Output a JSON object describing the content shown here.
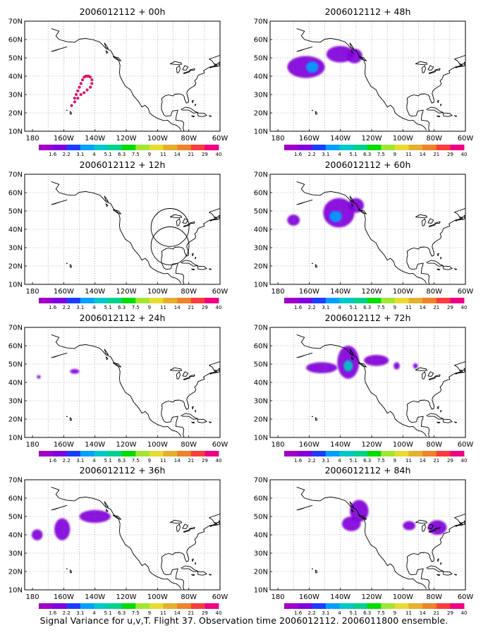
{
  "figure": {
    "caption": "Signal Variance for u,v,T. Flight 37. Observation time 2006012112. 2006011800 ensemble."
  },
  "colorbar": {
    "labels": [
      "1.6",
      "2.2",
      "3.1",
      "4",
      "5.1",
      "6.3",
      "7.5",
      "9",
      "11",
      "14",
      "21",
      "29",
      "40"
    ],
    "colors": [
      "#a000c8",
      "#8200dc",
      "#1e3cff",
      "#00a0ff",
      "#00c8c8",
      "#00d28c",
      "#00dc00",
      "#a0e632",
      "#e6dc32",
      "#e6af2d",
      "#f08228",
      "#fa3c3c",
      "#f00082"
    ]
  },
  "map": {
    "lon_ticks": [
      "180",
      "160W",
      "140W",
      "120W",
      "100W",
      "80W",
      "60W"
    ],
    "lat_ticks": [
      "10N",
      "20N",
      "30N",
      "40N",
      "50N",
      "60N",
      "70N"
    ],
    "lon_range": [
      -185,
      -60
    ],
    "lat_range": [
      10,
      70
    ],
    "grid": true
  },
  "chart_data": [
    {
      "type": "heatmap",
      "title": "2006012112 + 00h",
      "markers": [
        [
          -153,
          28
        ],
        [
          -152,
          30
        ],
        [
          -151,
          32
        ],
        [
          -150,
          34
        ],
        [
          -149,
          36
        ],
        [
          -148,
          38
        ],
        [
          -147,
          39.5
        ],
        [
          -146,
          40
        ],
        [
          -145,
          40
        ],
        [
          -144,
          40
        ],
        [
          -143,
          39.5
        ],
        [
          -142,
          38
        ],
        [
          -142,
          36
        ],
        [
          -143,
          34
        ],
        [
          -145,
          32.5
        ],
        [
          -147,
          31
        ],
        [
          -149,
          30
        ],
        [
          -151,
          28
        ],
        [
          -153,
          26
        ],
        [
          -155,
          24
        ]
      ],
      "blobs": [],
      "circles": []
    },
    {
      "type": "heatmap",
      "title": "2006012112 + 12h",
      "markers": [],
      "blobs": [],
      "circles": [
        [
          -92,
          41,
          9
        ],
        [
          -92,
          31,
          9
        ]
      ]
    },
    {
      "type": "heatmap",
      "title": "2006012112 + 24h",
      "markers": [],
      "blobs": [
        [
          -176,
          43,
          1.2,
          1,
          1.6
        ],
        [
          -153,
          46,
          3,
          1.3,
          1.6
        ]
      ],
      "circles": []
    },
    {
      "type": "heatmap",
      "title": "2006012112 + 36h",
      "markers": [],
      "blobs": [
        [
          -177,
          40,
          3.5,
          3,
          1.8
        ],
        [
          -161,
          43,
          5,
          6,
          2.2
        ],
        [
          -140,
          50,
          10,
          3.5,
          2.0
        ]
      ],
      "circles": []
    },
    {
      "type": "heatmap",
      "title": "2006012112 + 48h",
      "markers": [],
      "blobs": [
        [
          -162,
          45,
          12,
          6,
          2.0
        ],
        [
          -158,
          45,
          4,
          3,
          4.0
        ],
        [
          -140,
          52,
          9,
          4.5,
          2.0
        ],
        [
          -131,
          51,
          5,
          4,
          2.0
        ]
      ],
      "circles": []
    },
    {
      "type": "heatmap",
      "title": "2006012112 + 60h",
      "markers": [],
      "blobs": [
        [
          -170,
          45,
          4,
          3,
          1.8
        ],
        [
          -141,
          49,
          10,
          8,
          2.2
        ],
        [
          -143,
          47,
          4,
          3,
          4.0
        ],
        [
          -130,
          53,
          5,
          4,
          2.0
        ]
      ],
      "circles": []
    },
    {
      "type": "heatmap",
      "title": "2006012112 + 72h",
      "markers": [],
      "blobs": [
        [
          -152,
          48,
          10,
          3,
          1.8
        ],
        [
          -135,
          51,
          7,
          9,
          2.2
        ],
        [
          -135,
          49,
          3,
          3,
          4.5
        ],
        [
          -117,
          52,
          8,
          3,
          1.8
        ],
        [
          -104,
          49,
          2,
          2,
          1.6
        ],
        [
          -92,
          49,
          1.5,
          1.5,
          1.6
        ]
      ],
      "circles": []
    },
    {
      "type": "heatmap",
      "title": "2006012112 + 84h",
      "markers": [],
      "blobs": [
        [
          -128,
          53,
          6,
          6,
          2.0
        ],
        [
          -133,
          46,
          6,
          4,
          2.0
        ],
        [
          -96,
          45,
          4,
          2.5,
          1.8
        ],
        [
          -78,
          44,
          6,
          4,
          2.2
        ]
      ],
      "circles": []
    }
  ]
}
